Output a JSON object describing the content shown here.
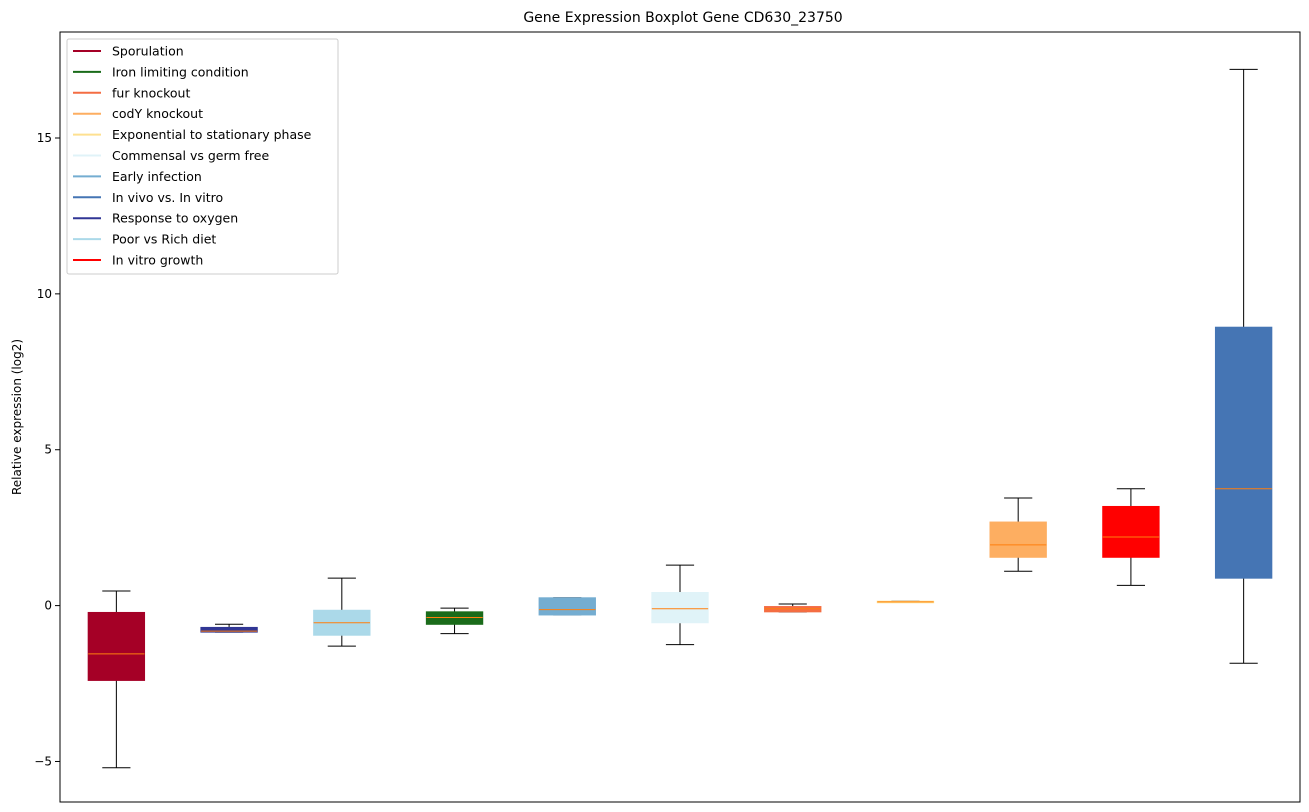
{
  "chart_data": {
    "type": "boxplot",
    "title": "Gene Expression Boxplot Gene CD630_23750",
    "xlabel": "",
    "ylabel": "Relative expression (log2)",
    "ylim": [
      -6.3,
      18.4
    ],
    "yticks": [
      -5,
      0,
      5,
      10,
      15
    ],
    "ytick_labels": [
      "−5",
      "0",
      "5",
      "10",
      "15"
    ],
    "grid": false,
    "legend_position": "top-left",
    "legend": [
      {
        "label": "Sporulation",
        "color": "#a50026"
      },
      {
        "label": "Iron limiting condition",
        "color": "#1a6b1a"
      },
      {
        "label": "fur knockout",
        "color": "#f46d43"
      },
      {
        "label": "codY knockout",
        "color": "#fdae61"
      },
      {
        "label": "Exponential to stationary phase",
        "color": "#fee090"
      },
      {
        "label": "Commensal vs germ free",
        "color": "#e0f3f8"
      },
      {
        "label": "Early infection",
        "color": "#74add1"
      },
      {
        "label": "In vivo vs. In vitro",
        "color": "#4575b4"
      },
      {
        "label": "Response to oxygen",
        "color": "#313695"
      },
      {
        "label": "Poor vs Rich diet",
        "color": "#abd9e9"
      },
      {
        "label": "In vitro growth",
        "color": "#ff0000"
      }
    ],
    "boxes": [
      {
        "color": "#a50026",
        "whislo": -5.2,
        "q1": -2.4,
        "med": -1.55,
        "q3": -0.22,
        "whishi": 0.47
      },
      {
        "color": "#313695",
        "whislo": -0.85,
        "q1": -0.85,
        "med": -0.82,
        "q3": -0.7,
        "whishi": -0.6
      },
      {
        "color": "#abd9e9",
        "whislo": -1.3,
        "q1": -0.95,
        "med": -0.55,
        "q3": -0.15,
        "whishi": 0.88
      },
      {
        "color": "#1a6b1a",
        "whislo": -0.9,
        "q1": -0.6,
        "med": -0.38,
        "q3": -0.2,
        "whishi": -0.08
      },
      {
        "color": "#74add1",
        "whislo": -0.3,
        "q1": -0.3,
        "med": -0.13,
        "q3": 0.25,
        "whishi": 0.25
      },
      {
        "color": "#e0f3f8",
        "whislo": -1.25,
        "q1": -0.55,
        "med": -0.1,
        "q3": 0.42,
        "whishi": 1.3
      },
      {
        "color": "#f46d43",
        "whislo": -0.2,
        "q1": -0.2,
        "med": -0.1,
        "q3": -0.03,
        "whishi": 0.05
      },
      {
        "color": "#fee090",
        "whislo": 0.1,
        "q1": 0.1,
        "med": 0.12,
        "q3": 0.14,
        "whishi": 0.14
      },
      {
        "color": "#fdae61",
        "whislo": 1.1,
        "q1": 1.55,
        "med": 1.95,
        "q3": 2.68,
        "whishi": 3.45
      },
      {
        "color": "#ff0000",
        "whislo": 0.65,
        "q1": 1.55,
        "med": 2.2,
        "q3": 3.18,
        "whishi": 3.75
      },
      {
        "color": "#4575b4",
        "whislo": -1.85,
        "q1": 0.88,
        "med": 3.75,
        "q3": 8.93,
        "whishi": 17.2
      }
    ],
    "median_color": "#ff7f0e"
  }
}
